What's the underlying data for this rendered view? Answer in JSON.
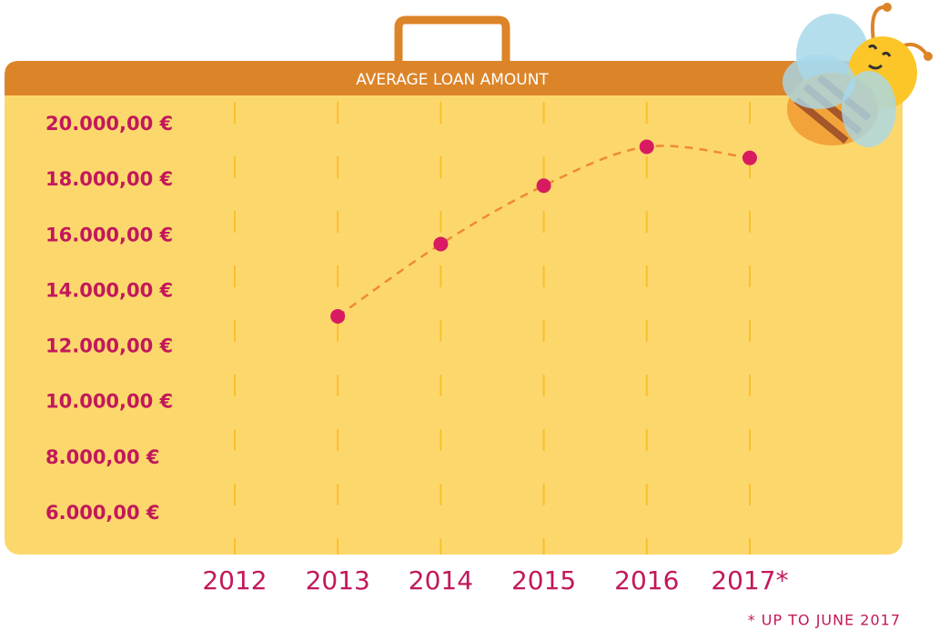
{
  "chart_data": {
    "type": "line",
    "title": "AVERAGE LOAN AMOUNT",
    "footnote": "* UP TO JUNE 2017",
    "categories": [
      "2012",
      "2013",
      "2014",
      "2015",
      "2016",
      "2017*"
    ],
    "values": [
      null,
      13100,
      15700,
      17800,
      19200,
      18800
    ],
    "color": "#d81b60",
    "line_color": "#f08a30",
    "ylim": [
      5000,
      21000
    ],
    "yticks": [
      {
        "value": 6000,
        "label": "6.000,00 €"
      },
      {
        "value": 8000,
        "label": "8.000,00 €"
      },
      {
        "value": 10000,
        "label": "10.000,00 €"
      },
      {
        "value": 12000,
        "label": "12.000,00 €"
      },
      {
        "value": 14000,
        "label": "14.000,00 €"
      },
      {
        "value": 16000,
        "label": "16.000,00 €"
      },
      {
        "value": 18000,
        "label": "18.000,00 €"
      },
      {
        "value": 20000,
        "label": "20.000,00 €"
      }
    ]
  }
}
